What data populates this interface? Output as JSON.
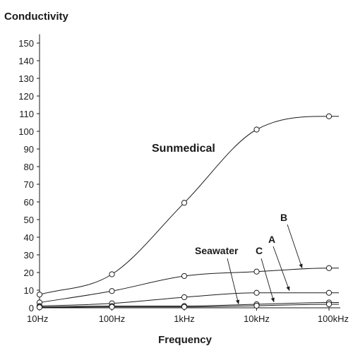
{
  "chart_data": {
    "type": "line",
    "title": "",
    "ylabel": "Conductivity",
    "xlabel": "Frequency",
    "x_scale": "log",
    "categories": [
      "10Hz",
      "100Hz",
      "1kHz",
      "10kHz",
      "100kHz"
    ],
    "x": [
      10,
      100,
      1000,
      10000,
      100000
    ],
    "ylim": [
      0,
      155
    ],
    "yticks": [
      0,
      10,
      20,
      30,
      40,
      50,
      60,
      70,
      80,
      90,
      100,
      110,
      120,
      130,
      140,
      150
    ],
    "grid": false,
    "series": [
      {
        "name": "Sunmedical",
        "values": [
          7.5,
          19,
          59.5,
          101,
          108.5
        ]
      },
      {
        "name": "B",
        "values": [
          3,
          9.5,
          18,
          20.5,
          22.5
        ]
      },
      {
        "name": "A",
        "values": [
          1,
          2.5,
          6,
          8.5,
          8.5
        ]
      },
      {
        "name": "C",
        "values": [
          0.5,
          1,
          1,
          2,
          3
        ]
      },
      {
        "name": "Seawater",
        "values": [
          0.3,
          0.5,
          0.5,
          1.2,
          2
        ]
      }
    ]
  }
}
